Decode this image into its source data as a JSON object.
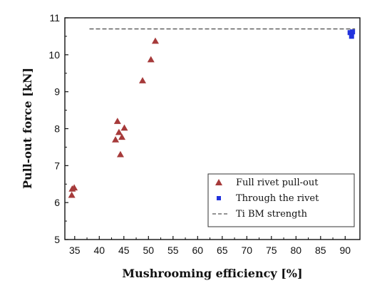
{
  "chart_data": {
    "type": "scatter",
    "xlabel": "Mushrooming efficiency [%]",
    "ylabel": "Pull-out force [kN]",
    "xlim": [
      33,
      93
    ],
    "ylim": [
      5,
      11
    ],
    "xticks": [
      "35",
      "40",
      "45",
      "50",
      "55",
      "60",
      "65",
      "70",
      "75",
      "80",
      "85",
      "90"
    ],
    "yticks": [
      "5",
      "6",
      "7",
      "8",
      "9",
      "10",
      "11"
    ],
    "grid": false,
    "legend_position": "bottom-right",
    "series": [
      {
        "name": "Full rivet pull-out",
        "marker": "triangle",
        "color": "#a63a3a",
        "points": [
          {
            "x": 34.4,
            "y": 6.2
          },
          {
            "x": 34.5,
            "y": 6.37
          },
          {
            "x": 34.9,
            "y": 6.4
          },
          {
            "x": 43.3,
            "y": 7.7
          },
          {
            "x": 43.7,
            "y": 8.2
          },
          {
            "x": 44.0,
            "y": 7.9
          },
          {
            "x": 44.3,
            "y": 7.3
          },
          {
            "x": 44.6,
            "y": 7.77
          },
          {
            "x": 45.1,
            "y": 8.02
          },
          {
            "x": 48.8,
            "y": 9.3
          },
          {
            "x": 50.5,
            "y": 9.87
          },
          {
            "x": 51.4,
            "y": 10.37
          }
        ]
      },
      {
        "name": "Through the rivet",
        "marker": "square",
        "color": "#2233dd",
        "points": [
          {
            "x": 91.0,
            "y": 10.6
          },
          {
            "x": 91.3,
            "y": 10.5
          },
          {
            "x": 91.5,
            "y": 10.62
          }
        ]
      },
      {
        "name": "Ti BM strength",
        "marker": "dashed-line",
        "color": "#555555",
        "x_range": [
          38,
          92
        ],
        "y": 10.7
      }
    ]
  }
}
